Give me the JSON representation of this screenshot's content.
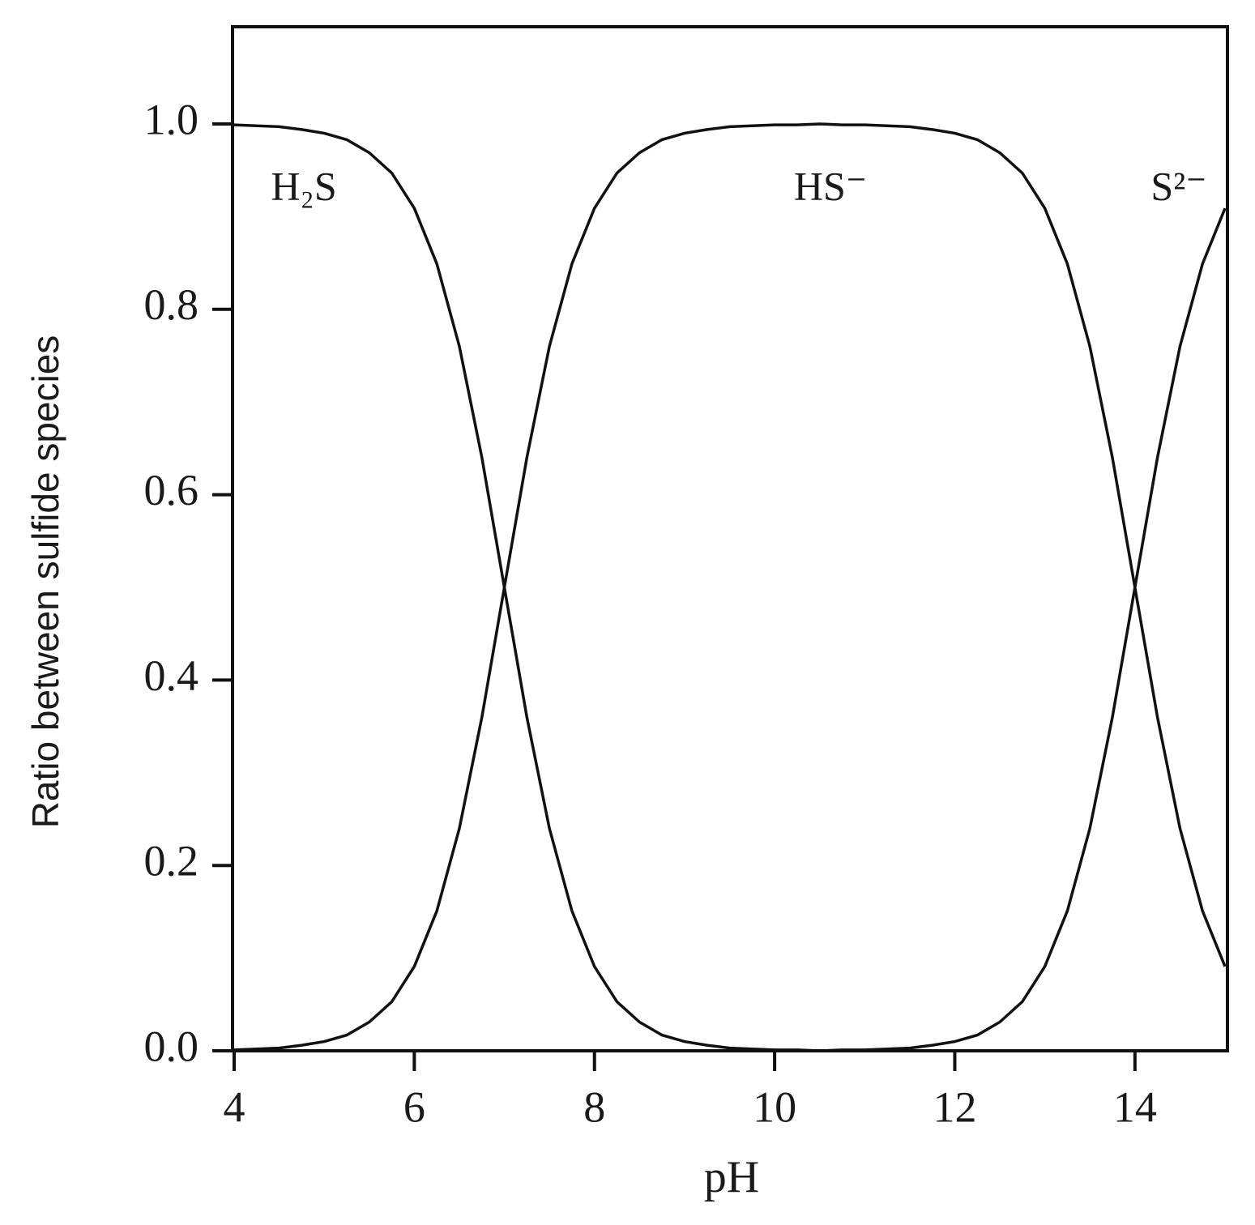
{
  "chart_data": {
    "type": "line",
    "xlabel": "pH",
    "ylabel": "Ratio between sulfide species",
    "x": [
      4,
      4.25,
      4.5,
      4.75,
      5,
      5.25,
      5.5,
      5.75,
      6,
      6.25,
      6.5,
      6.75,
      7,
      7.25,
      7.5,
      7.75,
      8,
      8.25,
      8.5,
      8.75,
      9,
      9.25,
      9.5,
      9.75,
      10,
      10.25,
      10.5,
      10.75,
      11,
      11.25,
      11.5,
      11.75,
      12,
      12.25,
      12.5,
      12.75,
      13,
      13.25,
      13.5,
      13.75,
      14,
      14.25,
      14.5,
      14.75,
      15
    ],
    "series": [
      {
        "name": "H₂S",
        "color": "#111111",
        "values": [
          0.999,
          0.998,
          0.997,
          0.994,
          0.99,
          0.983,
          0.969,
          0.947,
          0.909,
          0.849,
          0.76,
          0.64,
          0.5,
          0.36,
          0.24,
          0.151,
          0.091,
          0.053,
          0.031,
          0.017,
          0.01,
          0.006,
          0.003,
          0.002,
          0.001,
          0.001,
          0,
          0,
          0,
          0,
          0,
          0,
          0,
          0,
          0,
          0,
          0,
          0,
          0,
          0,
          0,
          0,
          0,
          0,
          0
        ]
      },
      {
        "name": "HS⁻",
        "color": "#111111",
        "values": [
          0.001,
          0.002,
          0.003,
          0.006,
          0.01,
          0.017,
          0.031,
          0.053,
          0.091,
          0.151,
          0.24,
          0.36,
          0.5,
          0.64,
          0.76,
          0.849,
          0.909,
          0.947,
          0.969,
          0.983,
          0.99,
          0.994,
          0.997,
          0.998,
          0.999,
          0.999,
          1,
          0.999,
          0.999,
          0.998,
          0.997,
          0.994,
          0.99,
          0.983,
          0.969,
          0.947,
          0.909,
          0.849,
          0.76,
          0.64,
          0.5,
          0.36,
          0.24,
          0.151,
          0.091
        ]
      },
      {
        "name": "S²⁻",
        "color": "#111111",
        "values": [
          0,
          0,
          0,
          0,
          0,
          0,
          0,
          0,
          0,
          0,
          0,
          0,
          0,
          0,
          0,
          0,
          0,
          0,
          0,
          0,
          0,
          0,
          0,
          0,
          0,
          0,
          0,
          0.001,
          0.001,
          0.002,
          0.003,
          0.006,
          0.01,
          0.017,
          0.031,
          0.053,
          0.091,
          0.151,
          0.24,
          0.36,
          0.5,
          0.64,
          0.76,
          0.849,
          0.909
        ]
      }
    ],
    "xlim": [
      4,
      15
    ],
    "xticks": [
      4,
      6,
      8,
      10,
      12,
      14
    ],
    "ylim": [
      0,
      1.1
    ],
    "yticks": [
      {
        "value": 0,
        "label": "0.0"
      },
      0.2,
      0.4,
      0.6,
      0.8,
      {
        "value": 1,
        "label": "1.0"
      }
    ],
    "grid": false
  }
}
